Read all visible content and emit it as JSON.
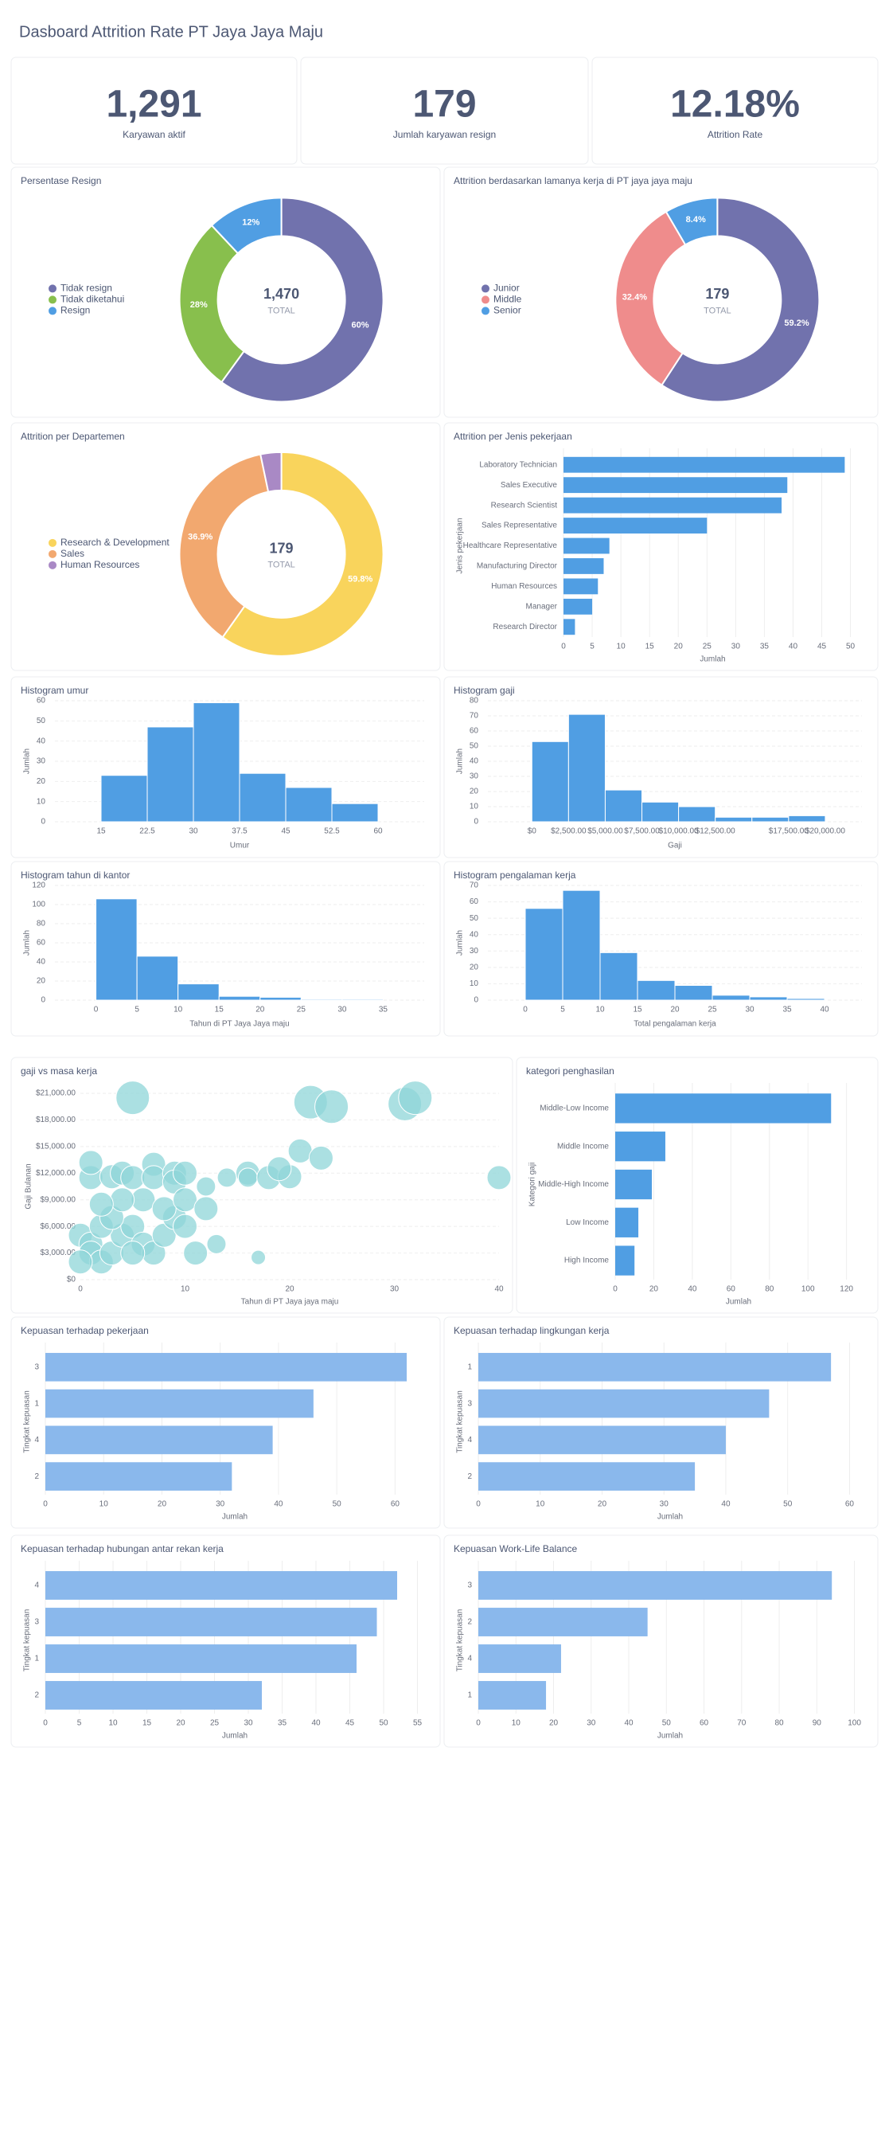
{
  "title": "Dasboard Attrition Rate PT Jaya Jaya Maju",
  "kpis": [
    {
      "value": "1,291",
      "label": "Karyawan aktif"
    },
    {
      "value": "179",
      "label": "Jumlah karyawan resign"
    },
    {
      "value": "12.18%",
      "label": "Attrition Rate"
    }
  ],
  "chart_data": [
    {
      "type": "pie",
      "title": "Persentase Resign",
      "categories": [
        "Tidak resign",
        "Tidak diketahui",
        "Resign"
      ],
      "values": [
        60,
        28,
        12
      ],
      "value_labels": [
        "60%",
        "28%",
        "12%"
      ],
      "colors": [
        "#7172ad",
        "#88bf4d",
        "#509ee3"
      ],
      "center_value": "1,470",
      "center_label": "TOTAL"
    },
    {
      "type": "pie",
      "title": "Attrition berdasarkan lamanya kerja di PT jaya jaya maju",
      "categories": [
        "Junior",
        "Middle",
        "Senior"
      ],
      "values": [
        59.2,
        32.4,
        8.4
      ],
      "value_labels": [
        "59.2%",
        "32.4%",
        "8.4%"
      ],
      "colors": [
        "#7172ad",
        "#ef8c8c",
        "#509ee3"
      ],
      "center_value": "179",
      "center_label": "TOTAL"
    },
    {
      "type": "pie",
      "title": "Attrition per Departemen",
      "categories": [
        "Research & Development",
        "Sales",
        "Human Resources"
      ],
      "values": [
        59.8,
        36.9,
        3.3
      ],
      "value_labels": [
        "59.8%",
        "36.9%",
        null
      ],
      "colors": [
        "#f9d45c",
        "#f2a86f",
        "#a989c5"
      ],
      "center_value": "179",
      "center_label": "TOTAL"
    },
    {
      "type": "bar",
      "orientation": "horizontal",
      "title": "Attrition per Jenis pekerjaan",
      "categories": [
        "Laboratory Technician",
        "Sales Executive",
        "Research Scientist",
        "Sales Representative",
        "Healthcare Representative",
        "Manufacturing Director",
        "Human Resources",
        "Manager",
        "Research Director"
      ],
      "values": [
        49,
        39,
        38,
        25,
        8,
        7,
        6,
        5,
        2
      ],
      "color": "#509ee3",
      "xlim": [
        0,
        52
      ],
      "xticks": [
        0,
        5,
        10,
        15,
        20,
        25,
        30,
        35,
        40,
        45,
        50
      ],
      "xlabel": "Jumlah",
      "ylabel": "Jenis pekerjaan",
      "grid": true
    },
    {
      "type": "histogram",
      "title": "Histogram umur",
      "bins": [
        15,
        22.5,
        30,
        37.5,
        45,
        52.5,
        60
      ],
      "values": [
        23,
        47,
        59,
        24,
        17,
        9
      ],
      "color": "#509ee3",
      "xlim": [
        7.5,
        67.5
      ],
      "xticks": [
        15,
        22.5,
        30,
        37.5,
        45,
        52.5,
        60
      ],
      "ylim": [
        0,
        60
      ],
      "yticks": [
        0,
        10,
        20,
        30,
        40,
        50,
        60
      ],
      "xlabel": "Umur",
      "ylabel": "Jumlah",
      "grid": true
    },
    {
      "type": "histogram",
      "title": "Histogram gaji",
      "bins": [
        0,
        2500,
        5000,
        7500,
        10000,
        12500,
        15000,
        17500,
        20000
      ],
      "values": [
        53,
        71,
        21,
        13,
        10,
        3,
        3,
        4
      ],
      "color": "#509ee3",
      "xlim": [
        -3000,
        22500
      ],
      "xticks": [
        {
          "value": 0,
          "label": "$0"
        },
        {
          "value": 2500,
          "label": "$2,500.00"
        },
        {
          "value": 5000,
          "label": "$5,000.00"
        },
        {
          "value": 7500,
          "label": "$7,500.00"
        },
        {
          "value": 10000,
          "label": "$10,000.00"
        },
        {
          "value": 12500,
          "label": "$12,500.00"
        },
        {
          "value": 17500,
          "label": "$17,500.00"
        },
        {
          "value": 20000,
          "label": "$20,000.00"
        }
      ],
      "ylim": [
        0,
        80
      ],
      "yticks": [
        0,
        10,
        20,
        30,
        40,
        50,
        60,
        70,
        80
      ],
      "xlabel": "Gaji",
      "ylabel": "Jumlah",
      "grid": true
    },
    {
      "type": "histogram",
      "title": "Histogram tahun di kantor",
      "bins": [
        0,
        5,
        10,
        15,
        20,
        25,
        30,
        35
      ],
      "values": [
        106,
        46,
        17,
        4,
        3,
        1,
        1
      ],
      "color": "#509ee3",
      "xlim": [
        -5,
        40
      ],
      "xticks": [
        0,
        5,
        10,
        15,
        20,
        25,
        30,
        35
      ],
      "ylim": [
        0,
        120
      ],
      "yticks": [
        0,
        20,
        40,
        60,
        80,
        100,
        120
      ],
      "xlabel": "Tahun di PT Jaya Jaya maju",
      "ylabel": "Jumlah",
      "grid": true
    },
    {
      "type": "histogram",
      "title": "Histogram pengalaman kerja",
      "bins": [
        0,
        5,
        10,
        15,
        20,
        25,
        30,
        35,
        40
      ],
      "values": [
        56,
        67,
        29,
        12,
        9,
        3,
        2,
        1
      ],
      "color": "#509ee3",
      "xlim": [
        -5,
        45
      ],
      "xticks": [
        0,
        5,
        10,
        15,
        20,
        25,
        30,
        35,
        40
      ],
      "ylim": [
        0,
        70
      ],
      "yticks": [
        0,
        10,
        20,
        30,
        40,
        50,
        60,
        70
      ],
      "xlabel": "Total pengalaman kerja",
      "ylabel": "Jumlah",
      "grid": true
    },
    {
      "type": "scatter",
      "title": "gaji vs masa kerja",
      "x": [
        5,
        22,
        24,
        31,
        32,
        1,
        1,
        3,
        4,
        5,
        7,
        7,
        9,
        9,
        10,
        12,
        14,
        16,
        16,
        18,
        20,
        19,
        21,
        23,
        40,
        13,
        17,
        0,
        1,
        1,
        2,
        3,
        4,
        5,
        6,
        7,
        8,
        9,
        10,
        11,
        0,
        2,
        3,
        5,
        6,
        8,
        10,
        12,
        4,
        2
      ],
      "values": [
        20500,
        20000,
        19500,
        19800,
        20500,
        11500,
        13200,
        11600,
        12000,
        11500,
        13000,
        11500,
        12000,
        11000,
        12000,
        10500,
        11500,
        12000,
        11500,
        11500,
        11600,
        12500,
        14500,
        13700,
        11500,
        4000,
        2500,
        5000,
        4000,
        3000,
        2000,
        3000,
        5000,
        6000,
        4000,
        3000,
        5000,
        7000,
        6000,
        3000,
        2000,
        6000,
        7000,
        3000,
        9000,
        8000,
        9000,
        8000,
        9000,
        8500
      ],
      "sizes": [
        5,
        5,
        5,
        5,
        5,
        3,
        3,
        3,
        3,
        3,
        3,
        3,
        3,
        3,
        3,
        2,
        2,
        3,
        2,
        3,
        3,
        3,
        3,
        3,
        3,
        2,
        1,
        3,
        3,
        3,
        3,
        3,
        3,
        3,
        3,
        3,
        3,
        3,
        3,
        3,
        3,
        3,
        3,
        3,
        3,
        3,
        3,
        3,
        3,
        3
      ],
      "color": "#8fd6d8",
      "xlim": [
        0,
        40
      ],
      "xticks": [
        0,
        10,
        20,
        30,
        40
      ],
      "ylim": [
        0,
        21000
      ],
      "yticks": [
        {
          "value": 0,
          "label": "$0"
        },
        {
          "value": 3000,
          "label": "$3,000.00"
        },
        {
          "value": 6000,
          "label": "$6,000.00"
        },
        {
          "value": 9000,
          "label": "$9,000.00"
        },
        {
          "value": 12000,
          "label": "$12,000.00"
        },
        {
          "value": 15000,
          "label": "$15,000.00"
        },
        {
          "value": 18000,
          "label": "$18,000.00"
        },
        {
          "value": 21000,
          "label": "$21,000.00"
        }
      ],
      "xlabel": "Tahun di PT Jaya jaya maju",
      "ylabel": "Gaji Bulanan",
      "grid": true
    },
    {
      "type": "bar",
      "orientation": "horizontal",
      "title": "kategori penghasilan",
      "categories": [
        "Middle-Low Income",
        "Middle Income",
        "Middle-High Income",
        "Low Income",
        "High Income"
      ],
      "values": [
        112,
        26,
        19,
        12,
        10
      ],
      "color": "#509ee3",
      "xlim": [
        0,
        128
      ],
      "xticks": [
        0,
        20,
        40,
        60,
        80,
        100,
        120
      ],
      "xlabel": "Jumlah",
      "ylabel": "Kategori gaji",
      "grid": true
    },
    {
      "type": "bar",
      "orientation": "horizontal",
      "title": "Kepuasan terhadap pekerjaan",
      "categories": [
        "3",
        "1",
        "4",
        "2"
      ],
      "values": [
        62,
        46,
        39,
        32
      ],
      "color": "#8ab8ec",
      "xlim": [
        0,
        65
      ],
      "xticks": [
        0,
        10,
        20,
        30,
        40,
        50,
        60
      ],
      "xlabel": "Jumlah",
      "ylabel": "Tingkat kepuasan",
      "grid": true
    },
    {
      "type": "bar",
      "orientation": "horizontal",
      "title": "Kepuasan terhadap lingkungan kerja",
      "categories": [
        "1",
        "3",
        "4",
        "2"
      ],
      "values": [
        57,
        47,
        40,
        35
      ],
      "color": "#8ab8ec",
      "xlim": [
        0,
        62
      ],
      "xticks": [
        0,
        10,
        20,
        30,
        40,
        50,
        60
      ],
      "xlabel": "Jumlah",
      "ylabel": "Tingkat kepuasan",
      "grid": true
    },
    {
      "type": "bar",
      "orientation": "horizontal",
      "title": "Kepuasan terhadap hubungan antar rekan kerja",
      "categories": [
        "4",
        "3",
        "1",
        "2"
      ],
      "values": [
        52,
        49,
        46,
        32
      ],
      "color": "#8ab8ec",
      "xlim": [
        0,
        56
      ],
      "xticks": [
        0,
        5,
        10,
        15,
        20,
        25,
        30,
        35,
        40,
        45,
        50,
        55
      ],
      "xlabel": "Jumlah",
      "ylabel": "Tingkat kepuasan",
      "grid": true
    },
    {
      "type": "bar",
      "orientation": "horizontal",
      "title": "Kepuasan Work-Life Balance",
      "categories": [
        "3",
        "2",
        "4",
        "1"
      ],
      "values": [
        94,
        45,
        22,
        18
      ],
      "color": "#8ab8ec",
      "xlim": [
        0,
        102
      ],
      "xticks": [
        0,
        10,
        20,
        30,
        40,
        50,
        60,
        70,
        80,
        90,
        100
      ],
      "xlabel": "Jumlah",
      "ylabel": "Tingkat kepuasan",
      "grid": true
    }
  ]
}
